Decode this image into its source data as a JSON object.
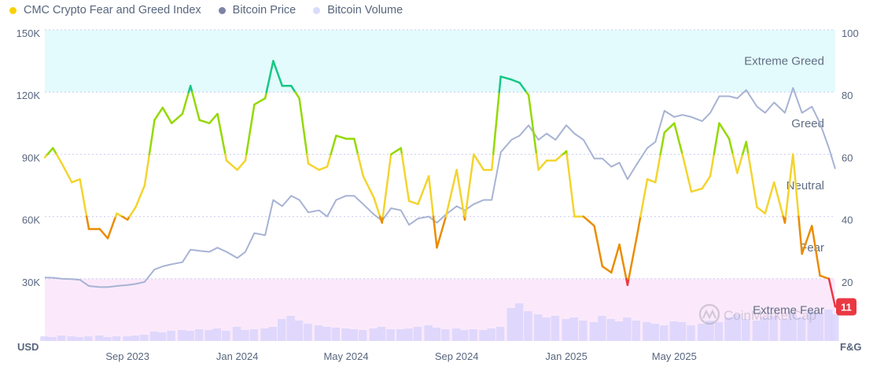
{
  "legend": {
    "items": [
      {
        "label": "CMC Crypto Fear and Greed Index",
        "color": "#f8d100"
      },
      {
        "label": "Bitcoin Price",
        "color": "#7d83a6"
      },
      {
        "label": "Bitcoin Volume",
        "color": "#d9dcfa"
      }
    ]
  },
  "watermark": "CoinMarketCap",
  "chart_data": {
    "type": "line",
    "left_axis": {
      "label": "USD",
      "range": [
        0,
        150000
      ],
      "ticks": [
        30000,
        60000,
        90000,
        120000,
        150000
      ],
      "tick_labels": [
        "30K",
        "60K",
        "90K",
        "120K",
        "150K"
      ]
    },
    "right_axis": {
      "label": "F&G",
      "range": [
        0,
        100
      ],
      "ticks": [
        20,
        40,
        60,
        80,
        100
      ],
      "tick_labels": [
        "20",
        "40",
        "60",
        "80",
        "100"
      ]
    },
    "x_axis": {
      "ticks": [
        "2023-09-01",
        "2024-01-01",
        "2024-05-01",
        "2024-09-01",
        "2025-01-01",
        "2025-05-01"
      ],
      "tick_labels": [
        "Sep 2023",
        "Jan 2024",
        "May 2024",
        "Sep 2024",
        "Jan 2025",
        "May 2025"
      ]
    },
    "grid": true,
    "legend_position": "top-left",
    "zones": [
      {
        "label": "Extreme Greed",
        "range": [
          80,
          100
        ],
        "color": "#e3fbfc"
      },
      {
        "label": "Greed",
        "range": [
          60,
          80
        ]
      },
      {
        "label": "Neutral",
        "range": [
          40,
          60
        ]
      },
      {
        "label": "Fear",
        "range": [
          20,
          40
        ]
      },
      {
        "label": "Extreme Fear",
        "range": [
          0,
          20
        ],
        "color": "#fbe9fb"
      }
    ],
    "fg_colors": {
      "extreme_fear": "#ea3943",
      "fear": "#ea8c00",
      "neutral": "#f3d42f",
      "greed": "#93d900",
      "extreme_greed": "#16c784"
    },
    "current_value": {
      "label": "11",
      "color": "#ea3943"
    },
    "dates": [
      "2023-06-01",
      "2023-06-10",
      "2023-06-20",
      "2023-07-01",
      "2023-07-10",
      "2023-07-20",
      "2023-08-01",
      "2023-08-10",
      "2023-08-20",
      "2023-09-01",
      "2023-09-10",
      "2023-09-20",
      "2023-10-01",
      "2023-10-10",
      "2023-10-20",
      "2023-11-01",
      "2023-11-10",
      "2023-11-20",
      "2023-12-01",
      "2023-12-10",
      "2023-12-20",
      "2024-01-01",
      "2024-01-10",
      "2024-01-20",
      "2024-02-01",
      "2024-02-10",
      "2024-02-20",
      "2024-03-01",
      "2024-03-10",
      "2024-03-20",
      "2024-04-01",
      "2024-04-10",
      "2024-04-20",
      "2024-05-01",
      "2024-05-10",
      "2024-05-20",
      "2024-06-01",
      "2024-06-10",
      "2024-06-20",
      "2024-07-01",
      "2024-07-10",
      "2024-07-20",
      "2024-08-01",
      "2024-08-10",
      "2024-08-20",
      "2024-09-01",
      "2024-09-10",
      "2024-09-20",
      "2024-10-01",
      "2024-10-10",
      "2024-10-20",
      "2024-11-01",
      "2024-11-10",
      "2024-11-20",
      "2024-12-01",
      "2024-12-10",
      "2024-12-20",
      "2025-01-01",
      "2025-01-10",
      "2025-01-20",
      "2025-02-01",
      "2025-02-10",
      "2025-02-20",
      "2025-03-01",
      "2025-03-10",
      "2025-03-20",
      "2025-04-01",
      "2025-04-10",
      "2025-04-20",
      "2025-05-01",
      "2025-05-10",
      "2025-05-20",
      "2025-06-01",
      "2025-06-10",
      "2025-06-20",
      "2025-07-01",
      "2025-07-10",
      "2025-07-20",
      "2025-08-01",
      "2025-08-10",
      "2025-08-20",
      "2025-09-01",
      "2025-09-10",
      "2025-09-20",
      "2025-10-01",
      "2025-10-10",
      "2025-10-20",
      "2025-10-27"
    ],
    "series": [
      {
        "name": "CMC Crypto Fear and Greed Index",
        "axis": "right",
        "values": [
          59,
          62,
          57,
          51,
          52,
          36,
          36,
          33,
          41,
          39,
          43,
          50,
          71,
          75,
          70,
          73,
          82,
          71,
          70,
          73,
          58,
          55,
          58,
          76,
          78,
          90,
          82,
          82,
          78,
          57,
          55,
          56,
          66,
          65,
          65,
          53,
          46,
          38,
          60,
          62,
          45,
          44,
          53,
          30,
          40,
          55,
          39,
          60,
          55,
          55,
          85,
          84,
          83,
          79,
          55,
          58,
          58,
          61,
          40,
          40,
          37,
          24,
          22,
          31,
          18,
          33,
          52,
          51,
          67,
          70,
          60,
          48,
          49,
          53,
          70,
          65,
          54,
          64,
          43,
          41,
          51,
          38,
          60,
          28,
          37,
          21,
          20,
          11
        ]
      },
      {
        "name": "Bitcoin Price",
        "axis": "left",
        "color": "#a7b3d4",
        "values": [
          30600,
          30500,
          30000,
          29800,
          29500,
          26500,
          26000,
          26000,
          26500,
          27000,
          27500,
          28500,
          34500,
          36000,
          37000,
          38000,
          44000,
          43500,
          43000,
          45000,
          43000,
          40000,
          43000,
          52000,
          51000,
          68000,
          65000,
          70000,
          68000,
          62000,
          63000,
          60000,
          68000,
          70000,
          70000,
          66000,
          61000,
          58000,
          64000,
          63000,
          56000,
          59000,
          60000,
          57000,
          61000,
          65000,
          63000,
          66000,
          68000,
          68000,
          91000,
          97000,
          99000,
          104000,
          97000,
          100000,
          97000,
          104000,
          100000,
          97000,
          88000,
          88000,
          84000,
          86000,
          78000,
          85000,
          93000,
          96000,
          111000,
          108000,
          109000,
          108000,
          106000,
          110000,
          118000,
          118000,
          117000,
          121000,
          113000,
          110000,
          115000,
          110000,
          122000,
          110000,
          113000,
          105000,
          93000,
          83000
        ]
      },
      {
        "name": "Bitcoin Volume",
        "color": "#d9d5fb",
        "volume_relative": [
          6,
          5,
          7,
          6,
          5,
          6,
          7,
          5,
          6,
          6,
          7,
          8,
          12,
          11,
          13,
          14,
          13,
          15,
          14,
          16,
          13,
          18,
          14,
          15,
          16,
          18,
          28,
          32,
          26,
          22,
          20,
          18,
          17,
          16,
          15,
          14,
          16,
          18,
          15,
          15,
          16,
          18,
          20,
          17,
          15,
          16,
          14,
          15,
          14,
          16,
          18,
          42,
          48,
          38,
          34,
          30,
          32,
          28,
          30,
          26,
          24,
          32,
          28,
          25,
          30,
          26,
          24,
          22,
          20,
          25,
          24,
          20,
          22,
          26,
          24,
          30,
          34,
          28,
          26,
          30,
          32,
          28,
          35,
          30,
          38,
          36,
          40,
          34
        ]
      }
    ]
  }
}
